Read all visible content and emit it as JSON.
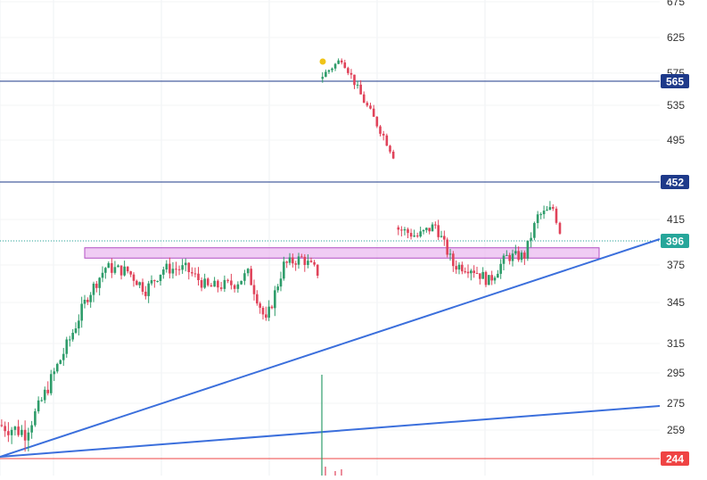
{
  "chart_data": {
    "type": "candlestick",
    "title": "",
    "xlabel": "",
    "ylabel": "",
    "y_axis_position": "right",
    "grid": true,
    "y_ticks": [
      675,
      625,
      575,
      535,
      495,
      452,
      415,
      396,
      375,
      345,
      315,
      295,
      275,
      259,
      244
    ],
    "price_lines": [
      {
        "label": "565",
        "value": 565,
        "color": "#1e3a8a"
      },
      {
        "label": "452",
        "value": 452,
        "color": "#1e3a8a"
      },
      {
        "label": "244",
        "value": 244,
        "color": "#ef4444"
      }
    ],
    "current_price": {
      "label": "396",
      "value": 396,
      "color": "#26a69a"
    },
    "zone": {
      "low": 381,
      "high": 390,
      "color": "#e9b6f0"
    },
    "trendlines_color": "#3b6fdc",
    "up_color": "#2e9c6a",
    "down_color": "#e0435a",
    "volume_spike_color": "#2e9c6a",
    "marker_color": "#f0c419"
  }
}
